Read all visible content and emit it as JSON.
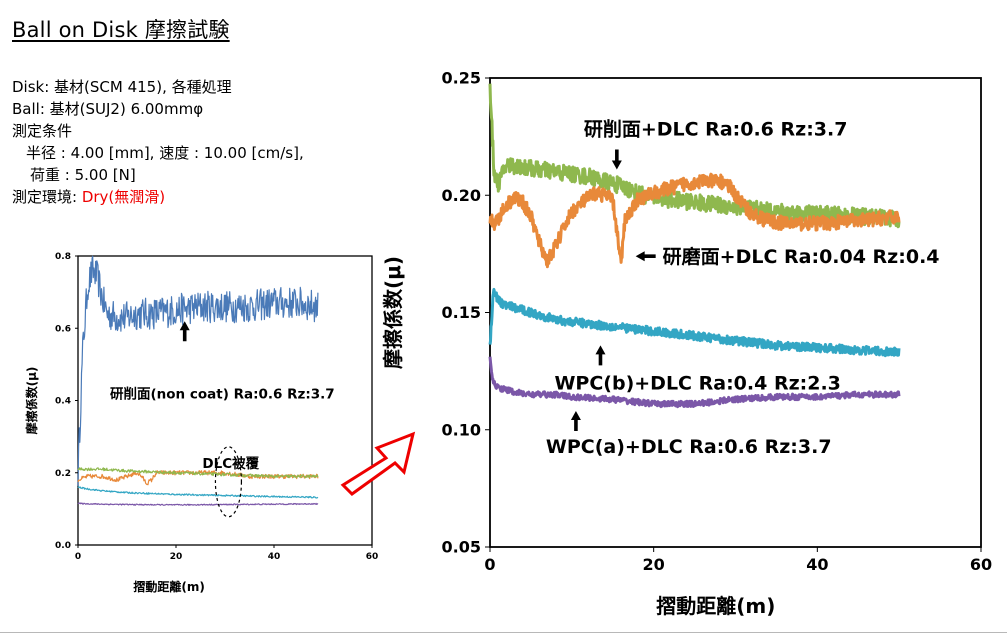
{
  "title": "Ball on Disk 摩擦試験",
  "conditions": {
    "disk": "Disk: 基材(SCM 415), 各種処理",
    "ball": "Ball:  基材(SUJ2) 6.00mmφ",
    "heading": "測定条件",
    "radius_speed": "半径 : 4.00 [mm],  速度 : 10.00 [cm/s],",
    "load": "荷重 : 5.00 [N]",
    "env_label": "測定環境: ",
    "env_value": "Dry(無潤滑)"
  },
  "colors": {
    "blue": "#4a7ab8",
    "orange": "#e8893a",
    "green": "#8fb84e",
    "teal": "#33a6c4",
    "purple": "#7b57a8",
    "arrow_red": "#ee0000"
  },
  "chart_data": [
    {
      "type": "line",
      "title": "",
      "xlabel": "摺動距離(m)",
      "ylabel": "摩擦係数(μ)",
      "xlim": [
        0,
        60
      ],
      "ylim": [
        0,
        0.8
      ],
      "xticks": [
        0,
        20,
        40,
        60
      ],
      "yticks": [
        0,
        0.2,
        0.4,
        0.6,
        0.8
      ],
      "grid": false,
      "annotations": [
        {
          "text": "研削面(non coat) Ra:0.6 Rz:3.7",
          "arrow": "up",
          "x": 23,
          "y": 0.42
        },
        {
          "text": "DLC被覆",
          "x": 36,
          "y": 0.29
        }
      ],
      "series": [
        {
          "color": "blue",
          "noise": 0.045,
          "x": [
            0,
            1,
            2,
            3,
            4,
            5,
            6,
            8,
            10,
            12,
            15,
            20,
            25,
            30,
            35,
            40,
            45,
            49
          ],
          "y": [
            0.2,
            0.55,
            0.72,
            0.76,
            0.74,
            0.68,
            0.64,
            0.63,
            0.63,
            0.64,
            0.64,
            0.65,
            0.66,
            0.66,
            0.66,
            0.67,
            0.67,
            0.66
          ]
        },
        {
          "color": "orange",
          "noise": 0.006,
          "x": [
            0,
            2,
            5,
            8,
            10,
            12,
            13,
            14,
            15,
            16,
            17,
            20,
            25,
            30,
            35,
            40,
            45,
            49
          ],
          "y": [
            0.18,
            0.19,
            0.19,
            0.18,
            0.19,
            0.2,
            0.19,
            0.17,
            0.18,
            0.2,
            0.2,
            0.2,
            0.2,
            0.2,
            0.19,
            0.19,
            0.19,
            0.19
          ]
        },
        {
          "color": "green",
          "noise": 0.004,
          "x": [
            0,
            2,
            5,
            10,
            20,
            30,
            40,
            49
          ],
          "y": [
            0.21,
            0.21,
            0.21,
            0.205,
            0.2,
            0.195,
            0.19,
            0.19
          ]
        },
        {
          "color": "teal",
          "noise": 0.002,
          "x": [
            0,
            2,
            5,
            10,
            20,
            30,
            40,
            49
          ],
          "y": [
            0.16,
            0.155,
            0.15,
            0.145,
            0.14,
            0.137,
            0.134,
            0.132
          ]
        },
        {
          "color": "purple",
          "noise": 0.0015,
          "x": [
            0,
            2,
            5,
            10,
            20,
            30,
            40,
            49
          ],
          "y": [
            0.115,
            0.114,
            0.113,
            0.112,
            0.111,
            0.112,
            0.113,
            0.114
          ]
        }
      ]
    },
    {
      "type": "line",
      "title": "",
      "xlabel": "摺動距離(m)",
      "ylabel": "摩擦係数(μ)",
      "xlim": [
        0,
        60
      ],
      "ylim": [
        0.05,
        0.25
      ],
      "xticks": [
        0,
        20,
        40,
        60
      ],
      "yticks": [
        0.05,
        0.1,
        0.15,
        0.2,
        0.25
      ],
      "grid": false,
      "annotations": [
        {
          "text": "研削面+DLC Ra:0.6 Rz:3.7",
          "arrow": "down",
          "x": 15.5,
          "y": 0.211
        },
        {
          "text": "研磨面+DLC Ra:0.04 Rz:0.4",
          "arrow": "left",
          "x": 17.8,
          "y": 0.174
        },
        {
          "text": "WPC(b)+DLC Ra:0.4 Rz:2.3",
          "arrow": "up",
          "x": 13.5,
          "y": 0.136
        },
        {
          "text": "WPC(a)+DLC Ra:0.6 Rz:3.7",
          "arrow": "up",
          "x": 10.5,
          "y": 0.108
        }
      ],
      "series": [
        {
          "color": "green",
          "noise": 0.0035,
          "x": [
            0,
            0.5,
            1,
            2,
            4,
            6,
            8,
            10,
            12,
            14,
            16,
            18,
            20,
            25,
            30,
            35,
            40,
            45,
            50
          ],
          "y": [
            0.245,
            0.21,
            0.205,
            0.213,
            0.212,
            0.211,
            0.21,
            0.209,
            0.208,
            0.206,
            0.204,
            0.201,
            0.199,
            0.197,
            0.195,
            0.193,
            0.192,
            0.191,
            0.19
          ]
        },
        {
          "color": "orange",
          "noise": 0.003,
          "x": [
            0,
            0.5,
            1,
            2,
            3,
            4,
            5,
            6,
            7,
            8,
            9,
            10,
            11,
            12,
            13,
            14,
            15,
            15.5,
            16,
            16.5,
            17,
            18,
            20,
            22,
            24,
            26,
            28,
            29,
            30,
            32,
            34,
            36,
            40,
            45,
            50
          ],
          "y": [
            0.19,
            0.188,
            0.19,
            0.196,
            0.199,
            0.197,
            0.191,
            0.18,
            0.172,
            0.178,
            0.186,
            0.193,
            0.196,
            0.199,
            0.201,
            0.2,
            0.198,
            0.185,
            0.17,
            0.19,
            0.192,
            0.198,
            0.201,
            0.203,
            0.205,
            0.206,
            0.206,
            0.205,
            0.2,
            0.192,
            0.189,
            0.188,
            0.188,
            0.189,
            0.191
          ]
        },
        {
          "color": "teal",
          "noise": 0.0018,
          "x": [
            0,
            0.4,
            1,
            2,
            4,
            6,
            8,
            10,
            15,
            20,
            25,
            30,
            35,
            40,
            45,
            50
          ],
          "y": [
            0.135,
            0.16,
            0.155,
            0.153,
            0.151,
            0.149,
            0.147,
            0.146,
            0.144,
            0.142,
            0.14,
            0.138,
            0.136,
            0.135,
            0.134,
            0.133
          ]
        },
        {
          "color": "purple",
          "noise": 0.0012,
          "x": [
            0,
            0.4,
            1,
            3,
            5,
            8,
            10,
            15,
            20,
            25,
            30,
            35,
            40,
            45,
            50
          ],
          "y": [
            0.13,
            0.12,
            0.118,
            0.116,
            0.115,
            0.115,
            0.114,
            0.113,
            0.111,
            0.111,
            0.113,
            0.114,
            0.114,
            0.115,
            0.115
          ]
        }
      ]
    }
  ]
}
